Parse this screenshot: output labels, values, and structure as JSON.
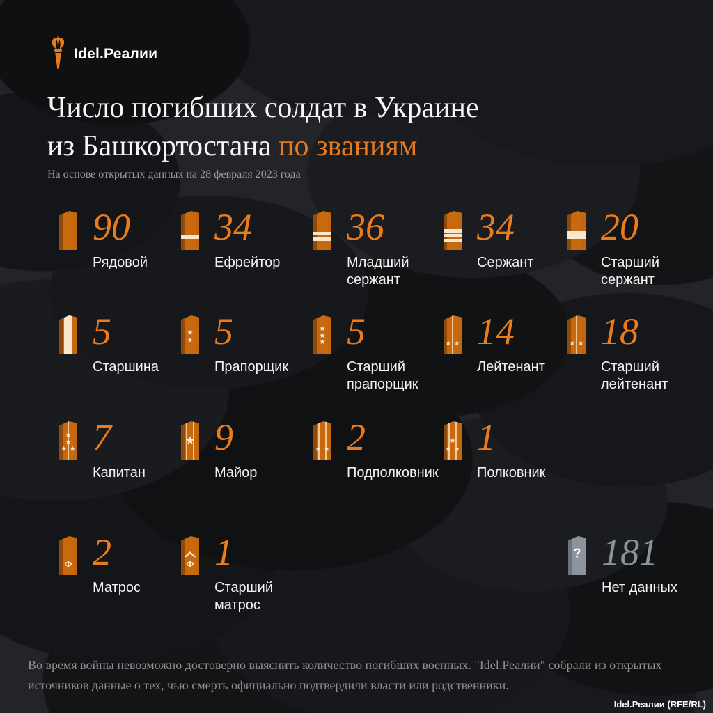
{
  "brand": {
    "name": "Idel.Реалии"
  },
  "header": {
    "title_line1": "Число погибших солдат в Украине",
    "title_line2_white": "из Башкортостана",
    "title_line2_orange": "по званиям",
    "subtitle": "На основе открытых данных на 28 февраля 2023 года"
  },
  "colors": {
    "accent_orange": "#e87a1e",
    "board_orange": "#c8690f",
    "board_cream": "#fbe7cb",
    "unknown_gray": "#8d949c",
    "background": "#222428"
  },
  "chart_data": {
    "type": "bar",
    "title": "Число погибших солдат в Украине из Башкортостана по званиям",
    "subtitle": "На основе открытых данных на 28 февраля 2023 года",
    "categories": [
      "Рядовой",
      "Ефрейтор",
      "Младший сержант",
      "Сержант",
      "Старший сержант",
      "Старшина",
      "Прапорщик",
      "Старший прапорщик",
      "Лейтенант",
      "Старший лейтенант",
      "Капитан",
      "Майор",
      "Подполковник",
      "Полковник",
      "Матрос",
      "Старший матрос",
      "Нет данных"
    ],
    "values": [
      90,
      34,
      36,
      34,
      20,
      5,
      5,
      5,
      14,
      18,
      7,
      9,
      2,
      1,
      2,
      1,
      181
    ],
    "legend_position": "none",
    "grid": false
  },
  "rows": [
    {
      "items": [
        {
          "count": "90",
          "label": "Рядовой",
          "insignia": {}
        },
        {
          "count": "34",
          "label": "Ефрейтор",
          "insignia": {
            "stripes_horizontal": 1
          }
        },
        {
          "count": "36",
          "label": "Младший\nсержант",
          "insignia": {
            "stripes_horizontal": 2
          }
        },
        {
          "count": "34",
          "label": "Сержант",
          "insignia": {
            "stripes_horizontal": 3
          }
        },
        {
          "count": "20",
          "label": "Старший\nсержант",
          "insignia": {
            "stripe_wide": true
          }
        }
      ]
    },
    {
      "items": [
        {
          "count": "5",
          "label": "Старшина",
          "insignia": {
            "band_vertical": true
          }
        },
        {
          "count": "5",
          "label": "Прапорщик",
          "insignia": {
            "stars_column": 2
          }
        },
        {
          "count": "5",
          "label": "Старший\nпрапорщик",
          "insignia": {
            "stars_column": 3
          }
        },
        {
          "count": "14",
          "label": "Лейтенант",
          "insignia": {
            "stripes_vertical": 1,
            "stars_flank": 2
          }
        },
        {
          "count": "18",
          "label": "Старший\nлейтенант",
          "insignia": {
            "stripes_vertical": 1,
            "stars_flank": 2
          }
        }
      ]
    },
    {
      "items": [
        {
          "count": "7",
          "label": "Капитан",
          "insignia": {
            "stripes_vertical": 1,
            "stars_column": 2,
            "stars_flank": 2
          }
        },
        {
          "count": "9",
          "label": "Майор",
          "insignia": {
            "stripes_vertical": 2,
            "star_big": true
          }
        },
        {
          "count": "2",
          "label": "Подполковник",
          "insignia": {
            "stripes_vertical": 2,
            "stars_flank": 2
          }
        },
        {
          "count": "1",
          "label": "Полковник",
          "insignia": {
            "stripes_vertical": 2,
            "stars_column": 1,
            "stars_flank": 2
          }
        }
      ]
    },
    {
      "items": [
        {
          "count": "2",
          "label": "Матрос",
          "insignia": {
            "letter": "Ф"
          }
        },
        {
          "count": "1",
          "label": "Старший\nматрос",
          "insignia": {
            "letter": "Ф",
            "chevron": true
          }
        }
      ]
    }
  ],
  "unknown": {
    "count": "181",
    "label": "Нет данных",
    "insignia": {
      "gray": true,
      "question": "?"
    }
  },
  "footer": {
    "note": "Во время войны невозможно достоверно выяснить количество погибших военных. \"Idel.Реалии\" собрали из открытых источников данные о тех, чью смерть официально подтвердили власти или родственники.",
    "credit": "Idel.Реалии (RFE/RL)"
  }
}
